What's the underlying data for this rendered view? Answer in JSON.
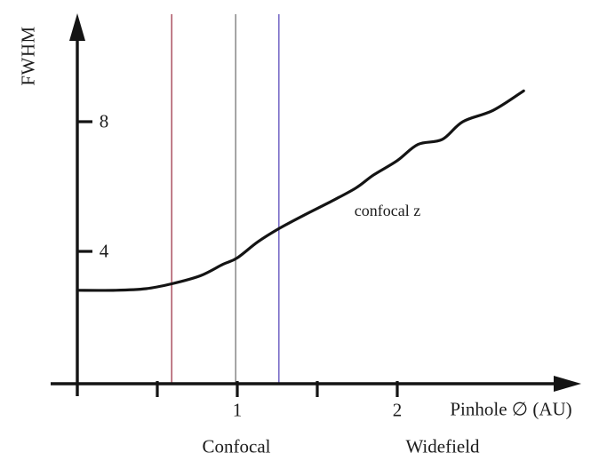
{
  "colors": {
    "curve": "#141414",
    "axis": "#141414",
    "text": "#1c1c1c",
    "background": "#ffffff",
    "vline_red": "#b05c6c",
    "vline_gray": "#8f8f8f",
    "vline_blue": "#7b6ec8"
  },
  "chart_data": {
    "type": "line",
    "title": "",
    "xlabel": "Pinhole ∅ (AU)",
    "ylabel": "FWHM",
    "xlim": [
      0,
      3.15
    ],
    "ylim": [
      0,
      11.3
    ],
    "grid": false,
    "legend": "none",
    "x_ticks": [
      {
        "x": 0.5,
        "label": ""
      },
      {
        "x": 1,
        "label": "1"
      },
      {
        "x": 1.5,
        "label": ""
      },
      {
        "x": 2,
        "label": "2"
      }
    ],
    "y_ticks": [
      {
        "y": 8,
        "label": "8"
      },
      {
        "y": 4,
        "label": "4"
      }
    ],
    "series": [
      {
        "name": "confocal z",
        "color": "#141414",
        "x": [
          0,
          0.24,
          0.43,
          0.59,
          0.77,
          0.91,
          1.0,
          1.13,
          1.26,
          1.41,
          1.57,
          1.74,
          1.85,
          2.0,
          2.13,
          2.28,
          2.41,
          2.6,
          2.79
        ],
        "y": [
          2.8,
          2.8,
          2.85,
          3.0,
          3.25,
          3.6,
          3.8,
          4.3,
          4.7,
          5.1,
          5.5,
          5.95,
          6.35,
          6.8,
          7.3,
          7.45,
          8.0,
          8.35,
          8.95
        ]
      }
    ],
    "annotation": {
      "text": "confocal z",
      "x": 1.91,
      "y": 5.25
    },
    "vlines": [
      {
        "name": "red",
        "x": 0.59,
        "color": "#b05c6c"
      },
      {
        "name": "gray",
        "x": 0.99,
        "color": "#8f8f8f"
      },
      {
        "name": "blue",
        "x": 1.26,
        "color": "#7b6ec8"
      }
    ],
    "region_labels": [
      {
        "text": "Confocal"
      },
      {
        "text": "Widefield"
      }
    ]
  }
}
